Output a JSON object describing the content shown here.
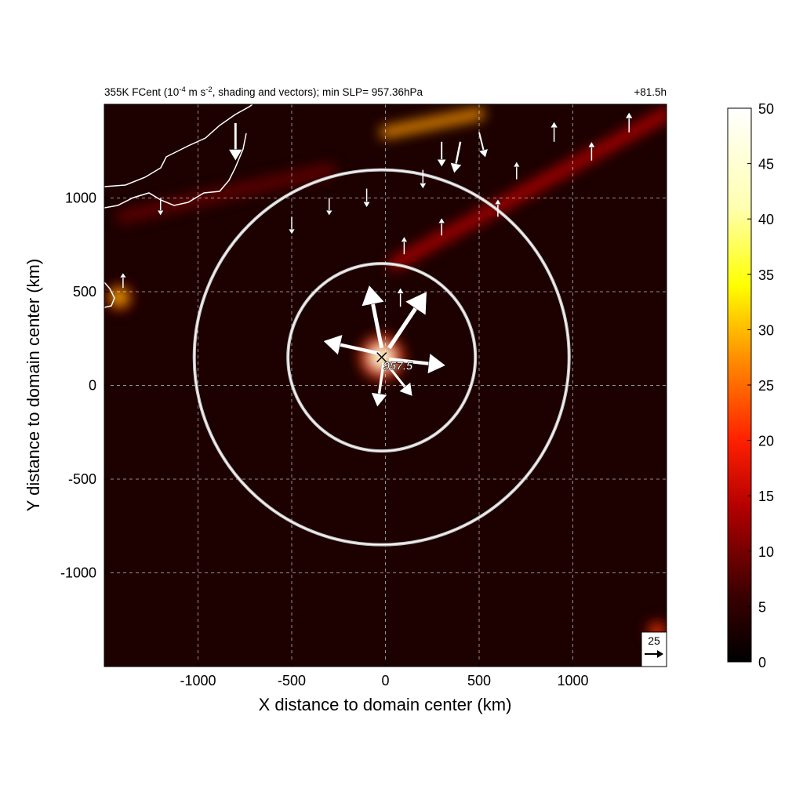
{
  "chart_data": {
    "type": "heatmap",
    "title_left_parts": [
      "355K FCent (10",
      "-4",
      " m s",
      "-2",
      ", shading and vectors); min SLP= 957.36hPa"
    ],
    "title_right": "+81.5h",
    "xlabel": "X distance to domain center (km)",
    "ylabel": "Y distance to domain center (km)",
    "xlim": [
      -1500,
      1500
    ],
    "ylim": [
      -1500,
      1500
    ],
    "xticks": [
      -1000,
      -500,
      0,
      500,
      1000
    ],
    "yticks": [
      -1000,
      -500,
      0,
      500,
      1000
    ],
    "xtick_labels": [
      "-1000",
      "-500",
      "0",
      "500",
      "1000"
    ],
    "ytick_labels": [
      "-1000",
      "-500",
      "0",
      "500",
      "1000"
    ],
    "grid": "dashed white at ticks",
    "colorbar": {
      "min": 0,
      "max": 50,
      "ticks": [
        0,
        5,
        10,
        15,
        20,
        25,
        30,
        35,
        40,
        45,
        50
      ],
      "tick_labels": [
        "0",
        "5",
        "10",
        "15",
        "20",
        "25",
        "30",
        "35",
        "40",
        "45",
        "50"
      ],
      "colormap": "black-red-yellow-white"
    },
    "center": {
      "x": -20,
      "y": 150,
      "label": "957.5"
    },
    "range_rings_km": [
      500,
      1000
    ],
    "reference_vector": {
      "label": "25",
      "value": 25
    },
    "fields": {
      "background": 3,
      "features": [
        {
          "type": "blob",
          "x": -20,
          "y": 150,
          "value": 45,
          "r": 60
        },
        {
          "type": "blob",
          "x": -1420,
          "y": 470,
          "value": 30,
          "r": 35
        },
        {
          "type": "blob",
          "x": 1450,
          "y": -1310,
          "value": 22,
          "r": 30
        },
        {
          "type": "band",
          "from": [
            50,
            650
          ],
          "to": [
            1500,
            1450
          ],
          "value": 14,
          "width": 70
        },
        {
          "type": "band",
          "from": [
            0,
            1350
          ],
          "to": [
            500,
            1450
          ],
          "value": 28,
          "width": 60
        },
        {
          "type": "band",
          "from": [
            -1400,
            900
          ],
          "to": [
            -300,
            1150
          ],
          "value": 9,
          "width": 70
        }
      ]
    },
    "vectors": [
      {
        "x": -30,
        "y": 170,
        "u": -45,
        "v": 10
      },
      {
        "x": -20,
        "y": 200,
        "u": -10,
        "v": 50
      },
      {
        "x": 20,
        "y": 200,
        "u": 30,
        "v": 45
      },
      {
        "x": 20,
        "y": 140,
        "u": 45,
        "v": -5
      },
      {
        "x": -10,
        "y": 120,
        "u": -5,
        "v": -35
      },
      {
        "x": 10,
        "y": 110,
        "u": 20,
        "v": -25
      },
      {
        "x": 80,
        "y": 420,
        "u": 0,
        "v": 15
      },
      {
        "x": 300,
        "y": 1300,
        "u": 0,
        "v": -20
      },
      {
        "x": 400,
        "y": 1300,
        "u": -5,
        "v": -25
      },
      {
        "x": 500,
        "y": 1350,
        "u": 5,
        "v": -20
      },
      {
        "x": 200,
        "y": 1150,
        "u": 0,
        "v": -15
      },
      {
        "x": -100,
        "y": 1050,
        "u": 0,
        "v": -15
      },
      {
        "x": -300,
        "y": 1000,
        "u": 0,
        "v": -14
      },
      {
        "x": -500,
        "y": 900,
        "u": 0,
        "v": -14
      },
      {
        "x": -800,
        "y": 1400,
        "u": 0,
        "v": -30
      },
      {
        "x": -1200,
        "y": 1000,
        "u": 0,
        "v": -14
      },
      {
        "x": -1400,
        "y": 520,
        "u": 0,
        "v": 12
      },
      {
        "x": 700,
        "y": 1100,
        "u": 0,
        "v": 14
      },
      {
        "x": 900,
        "y": 1300,
        "u": 0,
        "v": 16
      },
      {
        "x": 1100,
        "y": 1200,
        "u": 0,
        "v": 15
      },
      {
        "x": 1300,
        "y": 1350,
        "u": 0,
        "v": 16
      },
      {
        "x": 600,
        "y": 900,
        "u": 0,
        "v": 14
      },
      {
        "x": 300,
        "y": 800,
        "u": 0,
        "v": 14
      },
      {
        "x": 100,
        "y": 700,
        "u": 0,
        "v": 14
      }
    ]
  }
}
